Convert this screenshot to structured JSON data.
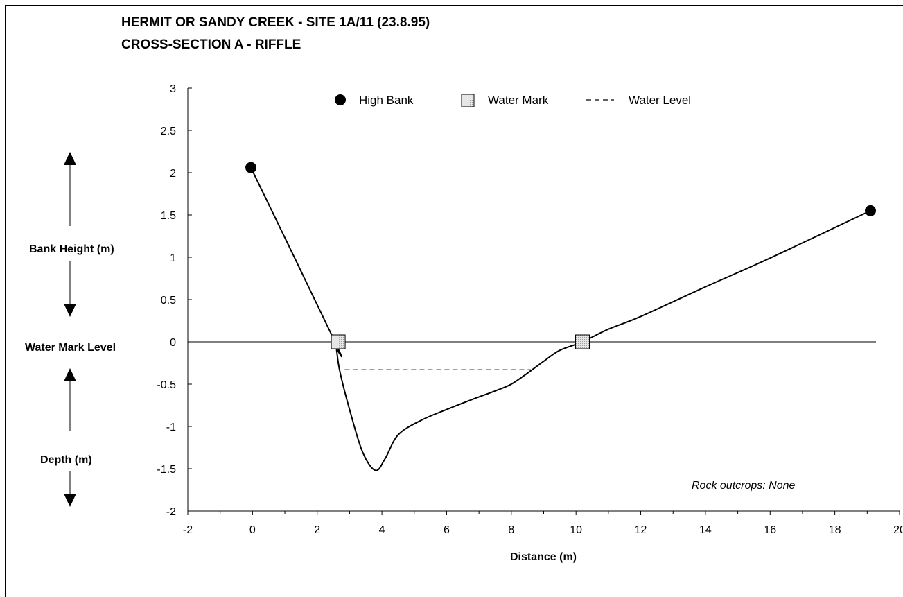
{
  "chart_data": {
    "type": "line",
    "title_lines": [
      "HERMIT OR SANDY CREEK  -  SITE 1A/11  (23.8.95)",
      "CROSS-SECTION A  -  RIFFLE"
    ],
    "xlabel": "Distance (m)",
    "xlim": [
      -2,
      20
    ],
    "ylim": [
      -2,
      3
    ],
    "x_ticks": [
      -2,
      0,
      2,
      4,
      6,
      8,
      10,
      12,
      14,
      16,
      18,
      20
    ],
    "y_ticks": [
      -2,
      -1.5,
      -1,
      -0.5,
      0,
      0.5,
      1,
      1.5,
      2,
      2.5,
      3
    ],
    "x_tick_labels": [
      "-2",
      "0",
      "2",
      "4",
      "6",
      "8",
      "10",
      "12",
      "14",
      "16",
      "18",
      "20"
    ],
    "y_tick_labels": [
      "-2",
      "-1.5",
      "-1",
      "-0.5",
      "0",
      "0.5",
      "1",
      "1.5",
      "2",
      "2.5",
      "3"
    ],
    "grid": false,
    "legend_position": "top",
    "side_labels": {
      "bank_height": "Bank Height (m)",
      "water_mark_level": "Water Mark Level",
      "depth": "Depth (m)"
    },
    "annotation": "Rock outcrops: None",
    "profile": {
      "x": [
        -0.05,
        2.55,
        2.6,
        2.7,
        3.0,
        3.4,
        3.8,
        4.1,
        4.5,
        5.2,
        6.0,
        6.8,
        7.5,
        8.0,
        8.5,
        9.0,
        9.5,
        10.2,
        11.0,
        12.0,
        14.0,
        16.0,
        19.1
      ],
      "y": [
        2.06,
        0.0,
        -0.1,
        -0.35,
        -0.8,
        -1.3,
        -1.52,
        -1.38,
        -1.1,
        -0.93,
        -0.8,
        -0.68,
        -0.58,
        -0.5,
        -0.37,
        -0.23,
        -0.1,
        0.0,
        0.15,
        0.3,
        0.65,
        0.99,
        1.55
      ]
    },
    "series": [
      {
        "name": "High Bank",
        "marker": "circle",
        "points": [
          [
            -0.05,
            2.06
          ],
          [
            19.1,
            1.55
          ]
        ]
      },
      {
        "name": "Water Mark",
        "marker": "square",
        "points": [
          [
            2.65,
            0.0
          ],
          [
            10.2,
            0.0
          ]
        ]
      },
      {
        "name": "Water Level",
        "style": "dashed",
        "points": [
          [
            2.85,
            -0.33
          ],
          [
            8.6,
            -0.33
          ]
        ]
      }
    ],
    "colors": {
      "line": "#000000",
      "high_bank": "#000000",
      "water_mark_fill": "#d8d8d8"
    }
  }
}
